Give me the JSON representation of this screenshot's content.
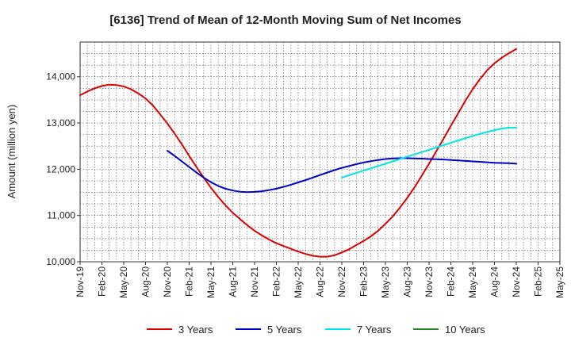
{
  "chart_data": {
    "type": "line",
    "title": "[6136]  Trend of Mean of 12-Month Moving Sum of Net Incomes",
    "xlabel": "",
    "ylabel": "Amount (million yen)",
    "ylim": [
      10000,
      14750
    ],
    "yticks": [
      10000,
      11000,
      12000,
      13000,
      14000
    ],
    "ytick_labels": [
      "10,000",
      "11,000",
      "12,000",
      "13,000",
      "14,000"
    ],
    "x_tick_labels": [
      "Nov-19",
      "Feb-20",
      "May-20",
      "Aug-20",
      "Nov-20",
      "Feb-21",
      "May-21",
      "Aug-21",
      "Nov-21",
      "Feb-22",
      "May-22",
      "Aug-22",
      "Nov-22",
      "Feb-23",
      "May-23",
      "Aug-23",
      "Nov-23",
      "Feb-24",
      "May-24",
      "Aug-24",
      "Nov-24",
      "Feb-25",
      "May-25"
    ],
    "grid": true,
    "legend_position": "bottom",
    "series": [
      {
        "name": "3 Years",
        "color": "#dd0000",
        "x": [
          "Nov-19",
          "Dec-19",
          "Jan-20",
          "Feb-20",
          "Mar-20",
          "Apr-20",
          "May-20",
          "Jun-20",
          "Jul-20",
          "Aug-20",
          "Sep-20",
          "Oct-20",
          "Nov-20",
          "Dec-20",
          "Jan-21",
          "Feb-21",
          "Mar-21",
          "Apr-21",
          "May-21",
          "Jun-21",
          "Jul-21",
          "Aug-21",
          "Sep-21",
          "Oct-21",
          "Nov-21",
          "Dec-21",
          "Jan-22",
          "Feb-22",
          "Mar-22",
          "Apr-22",
          "May-22",
          "Jun-22",
          "Jul-22",
          "Aug-22",
          "Sep-22",
          "Oct-22",
          "Nov-22",
          "Dec-22",
          "Jan-23",
          "Feb-23",
          "Mar-23",
          "Apr-23",
          "May-23",
          "Jun-23",
          "Jul-23",
          "Aug-23",
          "Sep-23",
          "Oct-23",
          "Nov-23",
          "Dec-23",
          "Jan-24",
          "Feb-24",
          "Mar-24",
          "Apr-24",
          "May-24",
          "Jun-24",
          "Jul-24",
          "Aug-24",
          "Sep-24",
          "Oct-24",
          "Nov-24"
        ],
        "values": [
          13600,
          13680,
          13750,
          13800,
          13830,
          13820,
          13790,
          13730,
          13640,
          13530,
          13380,
          13190,
          12990,
          12770,
          12540,
          12290,
          12050,
          11820,
          11600,
          11400,
          11220,
          11060,
          10920,
          10790,
          10670,
          10570,
          10480,
          10400,
          10340,
          10280,
          10220,
          10170,
          10130,
          10110,
          10110,
          10140,
          10200,
          10270,
          10360,
          10450,
          10550,
          10670,
          10820,
          10980,
          11170,
          11380,
          11610,
          11860,
          12120,
          12390,
          12660,
          12940,
          13210,
          13480,
          13730,
          13950,
          14140,
          14290,
          14410,
          14510,
          14600
        ]
      },
      {
        "name": "5 Years",
        "color": "#0000cc",
        "x": [
          "Nov-20",
          "Dec-20",
          "Jan-21",
          "Feb-21",
          "Mar-21",
          "Apr-21",
          "May-21",
          "Jun-21",
          "Jul-21",
          "Aug-21",
          "Sep-21",
          "Oct-21",
          "Nov-21",
          "Dec-21",
          "Jan-22",
          "Feb-22",
          "Mar-22",
          "Apr-22",
          "May-22",
          "Jun-22",
          "Jul-22",
          "Aug-22",
          "Sep-22",
          "Oct-22",
          "Nov-22",
          "Dec-22",
          "Jan-23",
          "Feb-23",
          "Mar-23",
          "Apr-23",
          "May-23",
          "Jun-23",
          "Jul-23",
          "Aug-23",
          "Sep-23",
          "Oct-23",
          "Nov-23",
          "Dec-23",
          "Jan-24",
          "Feb-24",
          "Mar-24",
          "Apr-24",
          "May-24",
          "Jun-24",
          "Jul-24",
          "Aug-24",
          "Sep-24",
          "Oct-24",
          "Nov-24"
        ],
        "values": [
          12400,
          12290,
          12170,
          12050,
          11930,
          11820,
          11720,
          11640,
          11580,
          11540,
          11515,
          11505,
          11510,
          11525,
          11550,
          11580,
          11620,
          11665,
          11715,
          11765,
          11820,
          11875,
          11930,
          11980,
          12030,
          12070,
          12110,
          12145,
          12175,
          12200,
          12220,
          12235,
          12240,
          12240,
          12235,
          12230,
          12220,
          12215,
          12210,
          12200,
          12190,
          12180,
          12170,
          12160,
          12150,
          12140,
          12135,
          12130,
          12120
        ]
      },
      {
        "name": "7 Years",
        "color": "#00e5e5",
        "x": [
          "Nov-22",
          "Dec-22",
          "Jan-23",
          "Feb-23",
          "Mar-23",
          "Apr-23",
          "May-23",
          "Jun-23",
          "Jul-23",
          "Aug-23",
          "Sep-23",
          "Oct-23",
          "Nov-23",
          "Dec-23",
          "Jan-24",
          "Feb-24",
          "Mar-24",
          "Apr-24",
          "May-24",
          "Jun-24",
          "Jul-24",
          "Aug-24",
          "Sep-24",
          "Oct-24",
          "Nov-24"
        ],
        "values": [
          11820,
          11870,
          11920,
          11970,
          12020,
          12070,
          12120,
          12170,
          12220,
          12270,
          12320,
          12370,
          12420,
          12470,
          12520,
          12570,
          12620,
          12670,
          12720,
          12765,
          12805,
          12845,
          12880,
          12900,
          12900
        ]
      },
      {
        "name": "10 Years",
        "color": "#228822",
        "x": [],
        "values": []
      }
    ]
  }
}
